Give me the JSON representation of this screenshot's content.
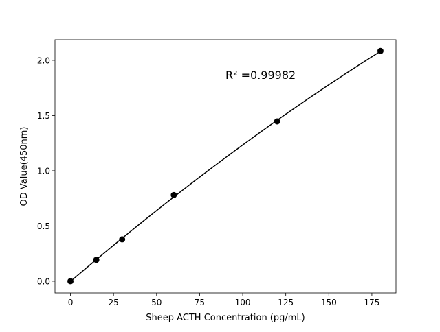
{
  "chart_data": {
    "type": "scatter",
    "title": "",
    "xlabel": "Sheep ACTH Concentration (pg/mL)",
    "ylabel": "OD Value(450nm)",
    "xlim": [
      -9,
      189
    ],
    "ylim": [
      -0.106,
      2.186
    ],
    "xticks": [
      0,
      25,
      50,
      75,
      100,
      125,
      150,
      175
    ],
    "yticks": [
      0.0,
      0.5,
      1.0,
      1.5,
      2.0
    ],
    "xtick_labels": [
      "0",
      "25",
      "50",
      "75",
      "100",
      "125",
      "150",
      "175"
    ],
    "ytick_labels": [
      "0.0",
      "0.5",
      "1.0",
      "1.5",
      "2.0"
    ],
    "grid": false,
    "points": [
      {
        "x": 0,
        "y": 0.0
      },
      {
        "x": 15,
        "y": 0.193
      },
      {
        "x": 30,
        "y": 0.379
      },
      {
        "x": 60,
        "y": 0.78
      },
      {
        "x": 120,
        "y": 1.447
      },
      {
        "x": 180,
        "y": 2.085
      }
    ],
    "fit_curve": true,
    "annotation": "R² =0.99982",
    "annotation_position": {
      "x": 90,
      "y": 1.87
    },
    "colors": {
      "points": "#000000",
      "line": "#000000"
    }
  }
}
